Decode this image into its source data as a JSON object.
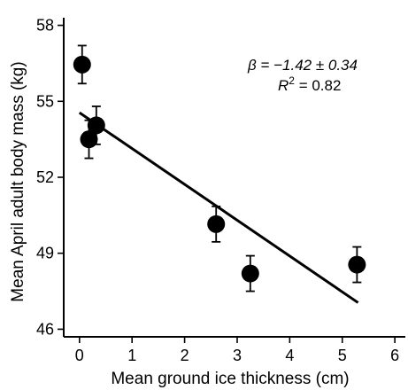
{
  "chart_data": {
    "type": "scatter",
    "xlabel": "Mean ground ice thickness (cm)",
    "ylabel": "Mean April adult body mass (kg)",
    "xlim": [
      -0.3,
      6.2
    ],
    "ylim": [
      45.7,
      58.3
    ],
    "x_ticks": [
      "0",
      "1",
      "2",
      "3",
      "4",
      "5",
      "6"
    ],
    "y_ticks": [
      "46",
      "49",
      "52",
      "55",
      "58"
    ],
    "points": [
      {
        "x": 0.05,
        "y": 56.45,
        "err": 0.75
      },
      {
        "x": 0.18,
        "y": 53.5,
        "err": 0.75
      },
      {
        "x": 0.32,
        "y": 54.05,
        "err": 0.75
      },
      {
        "x": 2.6,
        "y": 50.15,
        "err": 0.7
      },
      {
        "x": 3.25,
        "y": 48.2,
        "err": 0.7
      },
      {
        "x": 5.28,
        "y": 48.55,
        "err": 0.7
      }
    ],
    "fit_line": {
      "x": [
        0.0,
        5.3
      ],
      "y": [
        54.55,
        47.05
      ]
    },
    "annotation": {
      "beta": "β = −1.42 ± 0.34",
      "r2_symbol": "R",
      "r2_sup": "2",
      "r2_rest": " = 0.82"
    }
  }
}
